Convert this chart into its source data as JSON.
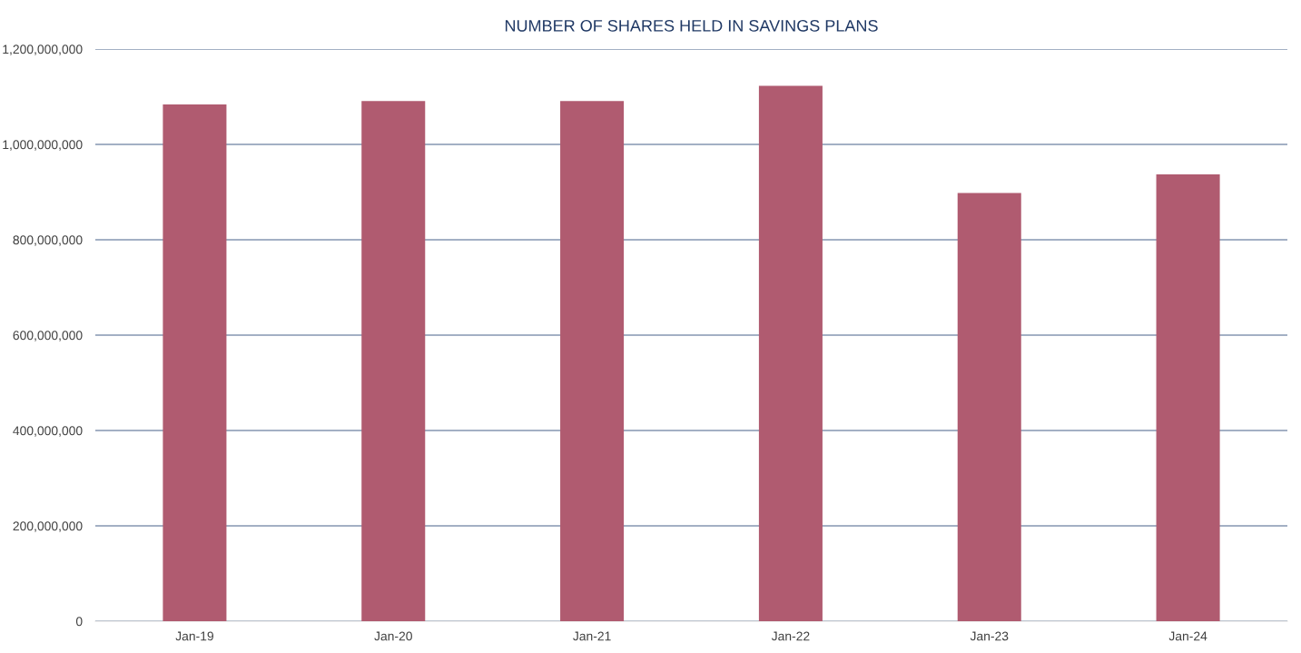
{
  "chart_data": {
    "type": "bar",
    "title": "NUMBER OF SHARES HELD IN SAVINGS PLANS",
    "categories": [
      "Jan-19",
      "Jan-20",
      "Jan-21",
      "Jan-22",
      "Jan-23",
      "Jan-24"
    ],
    "values": [
      1084000000,
      1091000000,
      1091000000,
      1123000000,
      898000000,
      937000000
    ],
    "color": "#b05b70",
    "ylim": [
      0,
      1200000000
    ],
    "yticks": [
      {
        "value": 0,
        "label": "0"
      },
      {
        "value": 200000000,
        "label": "200,000,000"
      },
      {
        "value": 400000000,
        "label": "400,000,000"
      },
      {
        "value": 600000000,
        "label": "600,000,000"
      },
      {
        "value": 800000000,
        "label": "800,000,000"
      },
      {
        "value": 1000000000,
        "label": "1,000,000,000"
      },
      {
        "value": 1200000000,
        "label": "1,200,000,000"
      }
    ],
    "grid": "y"
  }
}
